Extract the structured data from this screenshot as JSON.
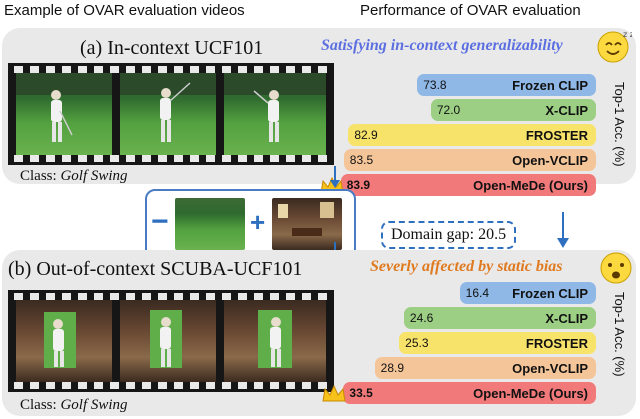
{
  "headers": {
    "left": "Example of OVAR evaluation videos",
    "right": "Performance of OVAR evaluation"
  },
  "top_panel": {
    "title": "(a) In-context UCF101",
    "class_prefix": "Class: ",
    "class_name": "Golf Swing",
    "note": "Satisfying in-context generalizability",
    "note_color": "#5b6fe0"
  },
  "bottom_panel": {
    "title": "(b) Out-of-context SCUBA-UCF101",
    "class_prefix": "Class: ",
    "class_name": "Golf Swing",
    "note": "Severly affected by static bias",
    "note_color": "#e07a1f"
  },
  "domain_gap": "Domain gap: 20.5",
  "operators": {
    "minus": "−",
    "plus": "+"
  },
  "chart_data": [
    {
      "type": "bar",
      "orientation": "horizontal",
      "ylabel": "Top-1 Acc. (%)",
      "categories": [
        "Frozen CLIP",
        "X-CLIP",
        "FROSTER",
        "Open-VCLIP",
        "Open-MeDe (Ours)"
      ],
      "values": [
        73.8,
        72.0,
        82.9,
        83.5,
        83.9
      ],
      "colors": [
        "#8fb8e6",
        "#9ccf84",
        "#f8e36a",
        "#f5c59a",
        "#f2797a"
      ],
      "best_index": 4
    },
    {
      "type": "bar",
      "orientation": "horizontal",
      "ylabel": "Top-1 Acc. (%)",
      "categories": [
        "Frozen CLIP",
        "X-CLIP",
        "FROSTER",
        "Open-VCLIP",
        "Open-MeDe (Ours)"
      ],
      "values": [
        16.4,
        24.6,
        25.3,
        28.9,
        33.5
      ],
      "colors": [
        "#8fb8e6",
        "#9ccf84",
        "#f8e36a",
        "#f5c59a",
        "#f2797a"
      ],
      "best_index": 4
    }
  ],
  "icons": [
    "smiley-face-icon",
    "surprised-face-icon",
    "crown-icon",
    "arrow-down-icon"
  ]
}
